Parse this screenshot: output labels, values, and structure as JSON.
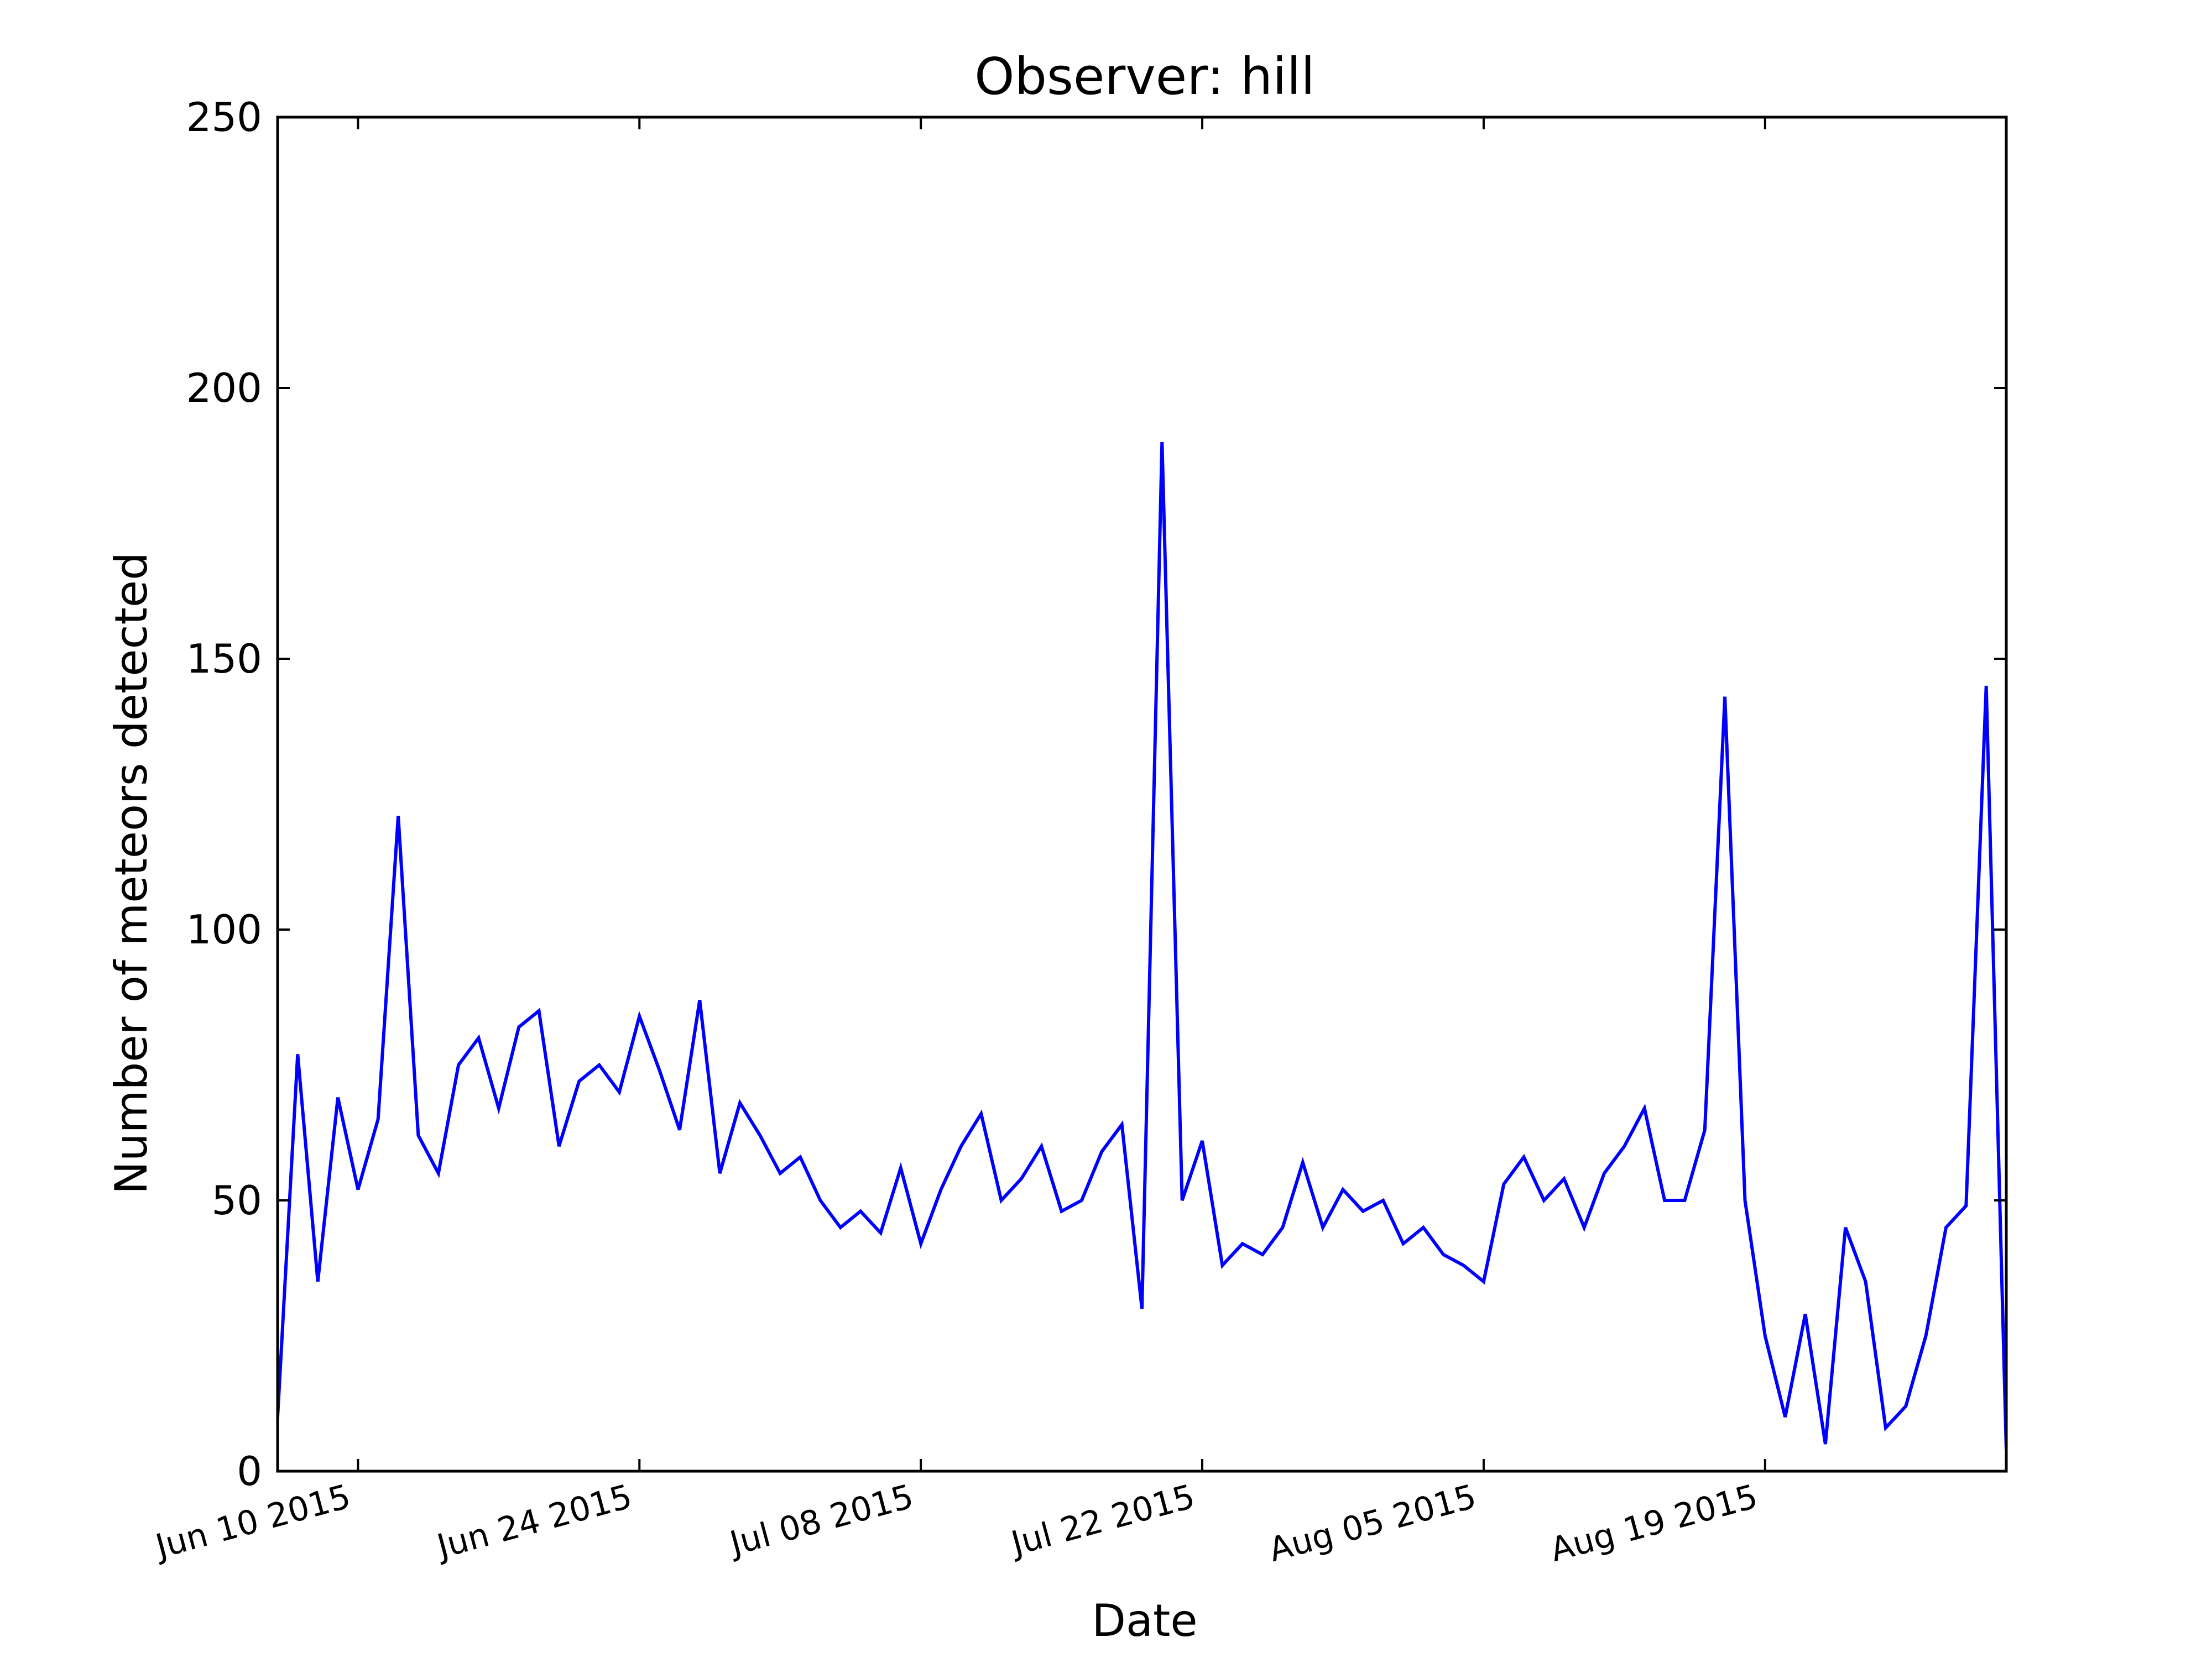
{
  "chart_data": {
    "type": "line",
    "title": "Observer: hill",
    "xlabel": "Date",
    "ylabel": "Number of meteors detected",
    "ylim": [
      0,
      250
    ],
    "xlim": [
      "2015-06-06",
      "2015-08-31"
    ],
    "yticks": [
      0,
      50,
      100,
      150,
      200,
      250
    ],
    "xticks": [
      {
        "date": "2015-06-10",
        "label": "Jun 10 2015"
      },
      {
        "date": "2015-06-24",
        "label": "Jun 24 2015"
      },
      {
        "date": "2015-07-08",
        "label": "Jul 08 2015"
      },
      {
        "date": "2015-07-22",
        "label": "Jul 22 2015"
      },
      {
        "date": "2015-08-05",
        "label": "Aug 05 2015"
      },
      {
        "date": "2015-08-19",
        "label": "Aug 19 2015"
      }
    ],
    "grid": false,
    "series": [
      {
        "color": "#0000ff",
        "x": [
          "2015-06-06",
          "2015-06-07",
          "2015-06-08",
          "2015-06-09",
          "2015-06-10",
          "2015-06-11",
          "2015-06-12",
          "2015-06-13",
          "2015-06-14",
          "2015-06-15",
          "2015-06-16",
          "2015-06-17",
          "2015-06-18",
          "2015-06-19",
          "2015-06-20",
          "2015-06-21",
          "2015-06-22",
          "2015-06-23",
          "2015-06-24",
          "2015-06-25",
          "2015-06-26",
          "2015-06-27",
          "2015-06-28",
          "2015-06-29",
          "2015-06-30",
          "2015-07-01",
          "2015-07-02",
          "2015-07-03",
          "2015-07-04",
          "2015-07-05",
          "2015-07-06",
          "2015-07-07",
          "2015-07-08",
          "2015-07-09",
          "2015-07-10",
          "2015-07-11",
          "2015-07-12",
          "2015-07-13",
          "2015-07-14",
          "2015-07-15",
          "2015-07-16",
          "2015-07-17",
          "2015-07-18",
          "2015-07-19",
          "2015-07-20",
          "2015-07-21",
          "2015-07-22",
          "2015-07-23",
          "2015-07-24",
          "2015-07-25",
          "2015-07-26",
          "2015-07-27",
          "2015-07-28",
          "2015-07-29",
          "2015-07-30",
          "2015-07-31",
          "2015-08-01",
          "2015-08-02",
          "2015-08-03",
          "2015-08-04",
          "2015-08-05",
          "2015-08-06",
          "2015-08-07",
          "2015-08-08",
          "2015-08-09",
          "2015-08-10",
          "2015-08-11",
          "2015-08-12",
          "2015-08-13",
          "2015-08-14",
          "2015-08-15",
          "2015-08-16",
          "2015-08-17",
          "2015-08-18",
          "2015-08-19",
          "2015-08-20",
          "2015-08-21",
          "2015-08-22",
          "2015-08-23",
          "2015-08-24",
          "2015-08-25",
          "2015-08-26",
          "2015-08-27",
          "2015-08-28",
          "2015-08-29",
          "2015-08-30",
          "2015-08-31"
        ],
        "y": [
          10,
          77,
          35,
          69,
          52,
          65,
          121,
          62,
          55,
          75,
          80,
          67,
          82,
          85,
          60,
          72,
          75,
          70,
          84,
          74,
          63,
          87,
          55,
          68,
          62,
          55,
          58,
          50,
          45,
          48,
          44,
          56,
          42,
          52,
          60,
          66,
          50,
          54,
          60,
          48,
          50,
          59,
          64,
          30,
          190,
          50,
          61,
          38,
          42,
          40,
          45,
          57,
          45,
          52,
          48,
          50,
          42,
          45,
          40,
          38,
          35,
          53,
          58,
          50,
          54,
          45,
          55,
          60,
          67,
          50,
          50,
          63,
          143,
          50,
          25,
          10,
          29,
          5,
          45,
          35,
          8,
          12,
          25,
          45,
          49,
          145,
          4
        ]
      }
    ]
  }
}
